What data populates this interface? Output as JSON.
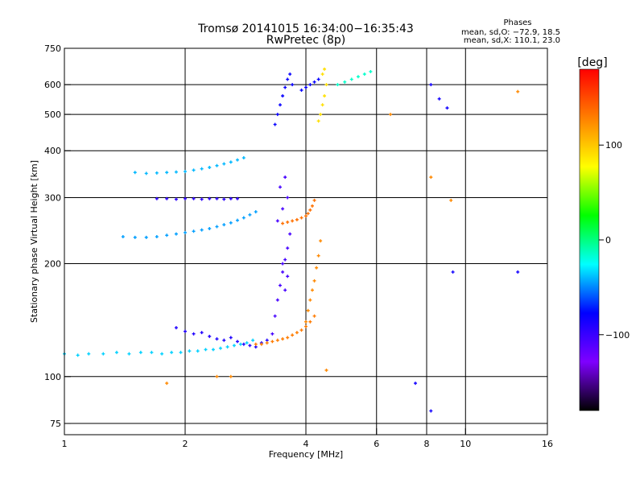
{
  "chart_data": {
    "type": "scatter",
    "title": "Tromsø 20141015 16:34:00−16:35:43",
    "subtitle": "RwPretec (8p)",
    "xlabel": "Frequency [MHz]",
    "ylabel": "Stationary phase Virtual Height [km]",
    "x_scale": "log",
    "y_scale": "log",
    "xlim": [
      1,
      16
    ],
    "ylim": [
      70,
      750
    ],
    "x_ticks": [
      1,
      2,
      4,
      6,
      8,
      10,
      16
    ],
    "x_tick_labels": [
      "1",
      "2",
      "4",
      "6",
      "8",
      "10",
      "16"
    ],
    "y_ticks": [
      75,
      100,
      200,
      300,
      400,
      500,
      600,
      750
    ],
    "y_tick_labels": [
      "75",
      "100",
      "200",
      "300",
      "400",
      "500",
      "600",
      "750"
    ],
    "grid": true,
    "colorbar": {
      "label": "[deg]",
      "range": [
        -180,
        180
      ],
      "ticks": [
        -100,
        0,
        100
      ],
      "tick_labels": [
        "−100",
        "0",
        "100"
      ],
      "colors": [
        "#000000",
        "#7f00ff",
        "#0000ff",
        "#00ffff",
        "#00ff00",
        "#ffff00",
        "#ff8000",
        "#ff0000"
      ]
    },
    "stats": {
      "title": "Phases",
      "line1": "mean, sd,O: −72.9, 18.5",
      "line2": "mean, sd,X: 110.1, 23.0"
    },
    "series": [
      {
        "x": [
          1.0,
          1.08,
          1.15,
          1.25,
          1.35,
          1.45,
          1.55,
          1.65,
          1.75,
          1.85,
          1.95,
          2.05,
          2.15,
          2.25,
          2.35,
          2.45,
          2.55,
          2.65,
          2.75,
          2.85,
          2.95
        ],
        "y": [
          115,
          114,
          115,
          115,
          116,
          115,
          116,
          116,
          115,
          116,
          116,
          117,
          117,
          118,
          118,
          119,
          120,
          121,
          122,
          123,
          125
        ],
        "phase": -35
      },
      {
        "x": [
          1.5,
          1.6,
          1.7,
          1.8,
          1.9,
          2.0,
          2.1,
          2.2,
          2.3,
          2.4,
          2.5,
          2.6,
          2.7,
          2.8
        ],
        "y": [
          350,
          348,
          349,
          350,
          351,
          352,
          355,
          358,
          361,
          365,
          369,
          373,
          378,
          383
        ],
        "phase": -40
      },
      {
        "x": [
          1.4,
          1.5,
          1.6,
          1.7,
          1.8,
          1.9,
          2.0,
          2.1,
          2.2,
          2.3,
          2.4,
          2.5,
          2.6,
          2.7,
          2.8,
          2.9,
          3.0
        ],
        "y": [
          236,
          235,
          235,
          236,
          238,
          240,
          242,
          244,
          246,
          248,
          251,
          254,
          257,
          261,
          265,
          270,
          275
        ],
        "phase": -45
      },
      {
        "x": [
          1.7,
          1.8,
          1.9,
          2.0,
          2.1,
          2.2,
          2.3,
          2.4,
          2.5,
          2.6,
          2.7
        ],
        "y": [
          298,
          298,
          297,
          298,
          298,
          297,
          298,
          298,
          297,
          298,
          298
        ],
        "phase": -95
      },
      {
        "x": [
          1.9,
          2.0,
          2.1,
          2.2,
          2.3,
          2.4,
          2.5,
          2.6,
          2.7,
          2.8,
          2.9,
          3.0,
          3.1,
          3.2
        ],
        "y": [
          135,
          132,
          130,
          131,
          128,
          126,
          125,
          127,
          124,
          122,
          121,
          120,
          123,
          125
        ],
        "phase": -90
      },
      {
        "x": [
          3.3,
          3.35,
          3.4,
          3.45,
          3.5,
          3.55,
          3.6,
          3.65,
          3.4,
          3.5,
          3.6,
          3.45,
          3.55,
          3.5,
          3.6,
          3.55
        ],
        "y": [
          130,
          145,
          160,
          175,
          190,
          205,
          220,
          240,
          260,
          280,
          300,
          320,
          340,
          200,
          185,
          170
        ],
        "phase": -105
      },
      {
        "x": [
          3.0,
          3.1,
          3.2,
          3.3,
          3.4,
          3.5,
          3.6,
          3.7,
          3.8,
          3.9,
          4.0,
          4.1,
          4.2
        ],
        "y": [
          122,
          122,
          123,
          124,
          125,
          126,
          127,
          129,
          131,
          133,
          136,
          140,
          145
        ],
        "phase": 130
      },
      {
        "x": [
          3.5,
          3.6,
          3.7,
          3.8,
          3.9,
          4.0,
          4.05,
          4.1,
          4.15,
          4.2
        ],
        "y": [
          256,
          258,
          260,
          262,
          265,
          268,
          272,
          278,
          285,
          295
        ],
        "phase": 135
      },
      {
        "x": [
          4.0,
          4.05,
          4.1,
          4.15,
          4.2,
          4.25,
          4.3,
          4.35
        ],
        "y": [
          140,
          150,
          160,
          170,
          180,
          195,
          210,
          230
        ],
        "phase": 125
      },
      {
        "x": [
          3.35,
          3.4,
          3.45,
          3.5,
          3.55,
          3.6,
          3.65,
          3.7,
          3.9,
          4.0,
          4.1,
          4.2,
          4.3
        ],
        "y": [
          470,
          500,
          530,
          560,
          590,
          620,
          640,
          600,
          580,
          590,
          600,
          610,
          620
        ],
        "phase": -80
      },
      {
        "x": [
          4.3,
          4.35,
          4.4,
          4.45,
          4.5,
          4.4,
          4.45
        ],
        "y": [
          480,
          500,
          530,
          560,
          600,
          640,
          660
        ],
        "phase": 90
      },
      {
        "x": [
          4.8,
          5.0,
          5.2,
          5.4,
          5.6,
          5.8
        ],
        "y": [
          600,
          610,
          620,
          630,
          640,
          650
        ],
        "phase": -15
      },
      {
        "x": [
          8.2,
          8.6,
          9.0,
          9.3,
          7.5,
          8.2,
          13.5
        ],
        "y": [
          600,
          550,
          520,
          190,
          96,
          81,
          190
        ],
        "phase": -85
      },
      {
        "x": [
          1.8,
          2.4,
          2.6,
          4.5,
          6.5,
          8.2,
          9.2,
          13.5
        ],
        "y": [
          96,
          100,
          100,
          104,
          500,
          340,
          295,
          575
        ],
        "phase": 125
      }
    ]
  }
}
